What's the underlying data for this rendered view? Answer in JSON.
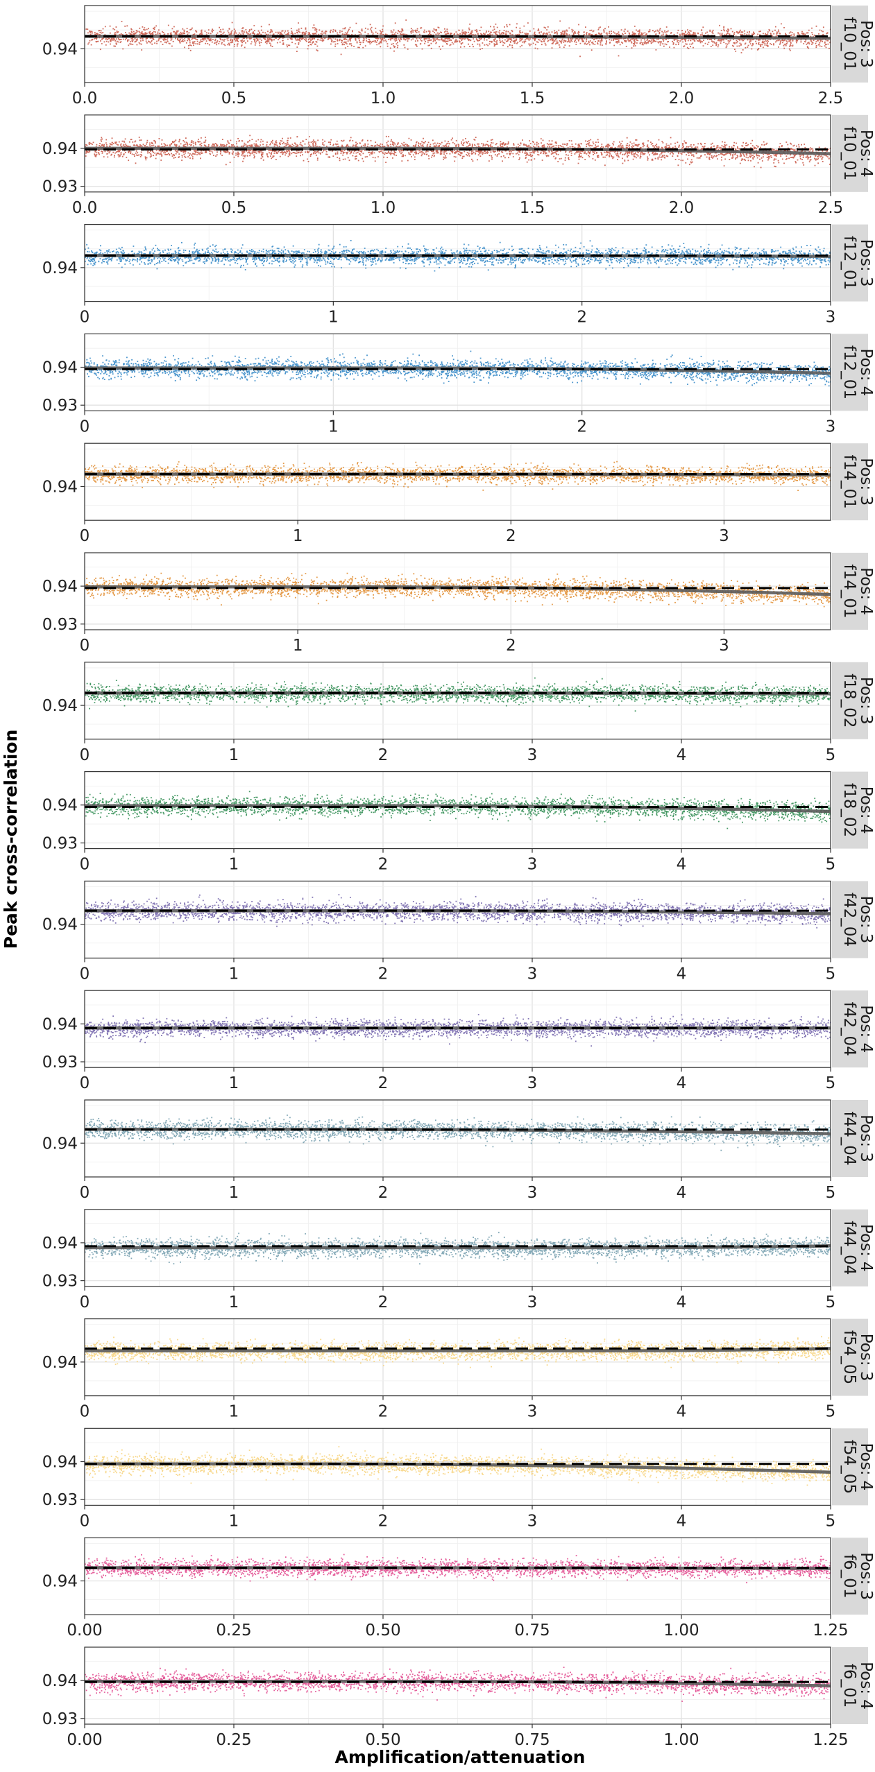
{
  "chart_data": {
    "type": "scatter",
    "xlabel": "Amplification/attenuation",
    "ylabel": "Peak cross-correlation",
    "grid": true,
    "legend": "none",
    "panels": [
      {
        "strip": [
          "f10_01",
          "Pos: 3"
        ],
        "color": "#c7513f",
        "xlim": [
          0,
          2.5
        ],
        "xticks": [
          0,
          0.5,
          1,
          1.5,
          2,
          2.5
        ],
        "xticklabels": [
          "0.0",
          "0.5",
          "1.0",
          "1.5",
          "2.0",
          "2.5"
        ],
        "ylim": [
          0.931,
          0.9515
        ],
        "yticks": [
          0.94
        ],
        "yticklabels": [
          "0.94"
        ],
        "ref_y": 0.9433,
        "fit_start": 0.9433,
        "fit_end": 0.9428,
        "fit_tail": 0.7,
        "spread": 0.0024
      },
      {
        "strip": [
          "f10_01",
          "Pos: 4"
        ],
        "color": "#c7513f",
        "xlim": [
          0,
          2.5
        ],
        "xticks": [
          0,
          0.5,
          1,
          1.5,
          2,
          2.5
        ],
        "xticklabels": [
          "0.0",
          "0.5",
          "1.0",
          "1.5",
          "2.0",
          "2.5"
        ],
        "ylim": [
          0.9285,
          0.9488
        ],
        "yticks": [
          0.93,
          0.94
        ],
        "yticklabels": [
          "0.93",
          "0.94"
        ],
        "ref_y": 0.9397,
        "fit_start": 0.94,
        "fit_end": 0.9386,
        "fit_tail": 0.6,
        "spread": 0.0024
      },
      {
        "strip": [
          "f12_01",
          "Pos: 3"
        ],
        "color": "#2b84c4",
        "xlim": [
          0,
          3
        ],
        "xticks": [
          0,
          1,
          2,
          3
        ],
        "xticklabels": [
          "0",
          "1",
          "2",
          "3"
        ],
        "ylim": [
          0.931,
          0.9515
        ],
        "yticks": [
          0.94
        ],
        "yticklabels": [
          "0.94"
        ],
        "ref_y": 0.9432,
        "fit_start": 0.9432,
        "fit_end": 0.943,
        "fit_tail": 0.7,
        "spread": 0.0022
      },
      {
        "strip": [
          "f12_01",
          "Pos: 4"
        ],
        "color": "#2b84c4",
        "xlim": [
          0,
          3
        ],
        "xticks": [
          0,
          1,
          2,
          3
        ],
        "xticklabels": [
          "0",
          "1",
          "2",
          "3"
        ],
        "ylim": [
          0.9285,
          0.9488
        ],
        "yticks": [
          0.93,
          0.94
        ],
        "yticklabels": [
          "0.93",
          "0.94"
        ],
        "ref_y": 0.9395,
        "fit_start": 0.9398,
        "fit_end": 0.9384,
        "fit_tail": 0.6,
        "spread": 0.0024
      },
      {
        "strip": [
          "f14_01",
          "Pos: 3"
        ],
        "color": "#e08a2a",
        "xlim": [
          0,
          3.5
        ],
        "xticks": [
          0,
          1,
          2,
          3
        ],
        "xticklabels": [
          "0",
          "1",
          "2",
          "3"
        ],
        "ylim": [
          0.931,
          0.9515
        ],
        "yticks": [
          0.94
        ],
        "yticklabels": [
          "0.94"
        ],
        "ref_y": 0.9433,
        "fit_start": 0.9433,
        "fit_end": 0.9431,
        "fit_tail": 0.7,
        "spread": 0.0022
      },
      {
        "strip": [
          "f14_01",
          "Pos: 4"
        ],
        "color": "#e08a2a",
        "xlim": [
          0,
          3.5
        ],
        "xticks": [
          0,
          1,
          2,
          3
        ],
        "xticklabels": [
          "0",
          "1",
          "2",
          "3"
        ],
        "ylim": [
          0.9285,
          0.9488
        ],
        "yticks": [
          0.93,
          0.94
        ],
        "yticklabels": [
          "0.93",
          "0.94"
        ],
        "ref_y": 0.9395,
        "fit_start": 0.9398,
        "fit_end": 0.9378,
        "fit_tail": 0.65,
        "spread": 0.0024
      },
      {
        "strip": [
          "f18_02",
          "Pos: 3"
        ],
        "color": "#2a8a4e",
        "xlim": [
          0,
          5
        ],
        "xticks": [
          0,
          1,
          2,
          3,
          4,
          5
        ],
        "xticklabels": [
          "0",
          "1",
          "2",
          "3",
          "4",
          "5"
        ],
        "ylim": [
          0.931,
          0.9515
        ],
        "yticks": [
          0.94
        ],
        "yticklabels": [
          "0.94"
        ],
        "ref_y": 0.9433,
        "fit_start": 0.9433,
        "fit_end": 0.9431,
        "fit_tail": 0.7,
        "spread": 0.0022
      },
      {
        "strip": [
          "f18_02",
          "Pos: 4"
        ],
        "color": "#2a8a4e",
        "xlim": [
          0,
          5
        ],
        "xticks": [
          0,
          1,
          2,
          3,
          4,
          5
        ],
        "xticklabels": [
          "0",
          "1",
          "2",
          "3",
          "4",
          "5"
        ],
        "ylim": [
          0.9285,
          0.9488
        ],
        "yticks": [
          0.93,
          0.94
        ],
        "yticklabels": [
          "0.93",
          "0.94"
        ],
        "ref_y": 0.9395,
        "fit_start": 0.9398,
        "fit_end": 0.9383,
        "fit_tail": 0.6,
        "spread": 0.0024
      },
      {
        "strip": [
          "f42_04",
          "Pos: 3"
        ],
        "color": "#6f5fa8",
        "xlim": [
          0,
          5
        ],
        "xticks": [
          0,
          1,
          2,
          3,
          4,
          5
        ],
        "xticklabels": [
          "0",
          "1",
          "2",
          "3",
          "4",
          "5"
        ],
        "ylim": [
          0.931,
          0.9515
        ],
        "yticks": [
          0.94
        ],
        "yticklabels": [
          "0.94"
        ],
        "ref_y": 0.9436,
        "fit_start": 0.9436,
        "fit_end": 0.9428,
        "fit_tail": 0.6,
        "spread": 0.0024
      },
      {
        "strip": [
          "f42_04",
          "Pos: 4"
        ],
        "color": "#6f5fa8",
        "xlim": [
          0,
          5
        ],
        "xticks": [
          0,
          1,
          2,
          3,
          4,
          5
        ],
        "xticklabels": [
          "0",
          "1",
          "2",
          "3",
          "4",
          "5"
        ],
        "ylim": [
          0.9285,
          0.9488
        ],
        "yticks": [
          0.93,
          0.94
        ],
        "yticklabels": [
          "0.93",
          "0.94"
        ],
        "ref_y": 0.9389,
        "fit_start": 0.9389,
        "fit_end": 0.9389,
        "fit_tail": 0.7,
        "spread": 0.0022
      },
      {
        "strip": [
          "f44_04",
          "Pos: 3"
        ],
        "color": "#6f9aaa",
        "xlim": [
          0,
          5
        ],
        "xticks": [
          0,
          1,
          2,
          3,
          4,
          5
        ],
        "xticklabels": [
          "0",
          "1",
          "2",
          "3",
          "4",
          "5"
        ],
        "ylim": [
          0.931,
          0.9515
        ],
        "yticks": [
          0.94
        ],
        "yticklabels": [
          "0.94"
        ],
        "ref_y": 0.9436,
        "fit_start": 0.9437,
        "fit_end": 0.9425,
        "fit_tail": 0.75,
        "spread": 0.0024
      },
      {
        "strip": [
          "f44_04",
          "Pos: 4"
        ],
        "color": "#6f9aaa",
        "xlim": [
          0,
          5
        ],
        "xticks": [
          0,
          1,
          2,
          3,
          4,
          5
        ],
        "xticklabels": [
          "0",
          "1",
          "2",
          "3",
          "4",
          "5"
        ],
        "ylim": [
          0.9285,
          0.9488
        ],
        "yticks": [
          0.93,
          0.94
        ],
        "yticklabels": [
          "0.93",
          "0.94"
        ],
        "ref_y": 0.9391,
        "fit_start": 0.9387,
        "fit_end": 0.9392,
        "fit_tail": 0.3,
        "spread": 0.0024
      },
      {
        "strip": [
          "f54_05",
          "Pos: 3"
        ],
        "color": "#f7d27a",
        "xlim": [
          0,
          5
        ],
        "xticks": [
          0,
          1,
          2,
          3,
          4,
          5
        ],
        "xticklabels": [
          "0",
          "1",
          "2",
          "3",
          "4",
          "5"
        ],
        "ylim": [
          0.931,
          0.9515
        ],
        "yticks": [
          0.94
        ],
        "yticklabels": [
          "0.94"
        ],
        "ref_y": 0.9436,
        "fit_start": 0.943,
        "fit_end": 0.9436,
        "fit_tail": 0.3,
        "spread": 0.0024
      },
      {
        "strip": [
          "f54_05",
          "Pos: 4"
        ],
        "color": "#f7d27a",
        "xlim": [
          0,
          5
        ],
        "xticks": [
          0,
          1,
          2,
          3,
          4,
          5
        ],
        "xticklabels": [
          "0",
          "1",
          "2",
          "3",
          "4",
          "5"
        ],
        "ylim": [
          0.9285,
          0.9488
        ],
        "yticks": [
          0.93,
          0.94
        ],
        "yticklabels": [
          "0.93",
          "0.94"
        ],
        "ref_y": 0.9394,
        "fit_start": 0.9394,
        "fit_end": 0.9372,
        "fit_tail": 0.7,
        "spread": 0.0024
      },
      {
        "strip": [
          "f6_01",
          "Pos: 3"
        ],
        "color": "#e0428a",
        "xlim": [
          0,
          1.25
        ],
        "xticks": [
          0,
          0.25,
          0.5,
          0.75,
          1,
          1.25
        ],
        "xticklabels": [
          "0.00",
          "0.25",
          "0.50",
          "0.75",
          "1.00",
          "1.25"
        ],
        "ylim": [
          0.931,
          0.9515
        ],
        "yticks": [
          0.94
        ],
        "yticklabels": [
          "0.94"
        ],
        "ref_y": 0.9435,
        "fit_start": 0.9435,
        "fit_end": 0.9433,
        "fit_tail": 0.7,
        "spread": 0.0022
      },
      {
        "strip": [
          "f6_01",
          "Pos: 4"
        ],
        "color": "#e0428a",
        "xlim": [
          0,
          1.25
        ],
        "xticks": [
          0,
          0.25,
          0.5,
          0.75,
          1,
          1.25
        ],
        "xticklabels": [
          "0.00",
          "0.25",
          "0.50",
          "0.75",
          "1.00",
          "1.25"
        ],
        "ylim": [
          0.9285,
          0.9488
        ],
        "yticks": [
          0.93,
          0.94
        ],
        "yticklabels": [
          "0.93",
          "0.94"
        ],
        "ref_y": 0.9396,
        "fit_start": 0.9398,
        "fit_end": 0.9386,
        "fit_tail": 0.6,
        "spread": 0.0024
      }
    ]
  }
}
